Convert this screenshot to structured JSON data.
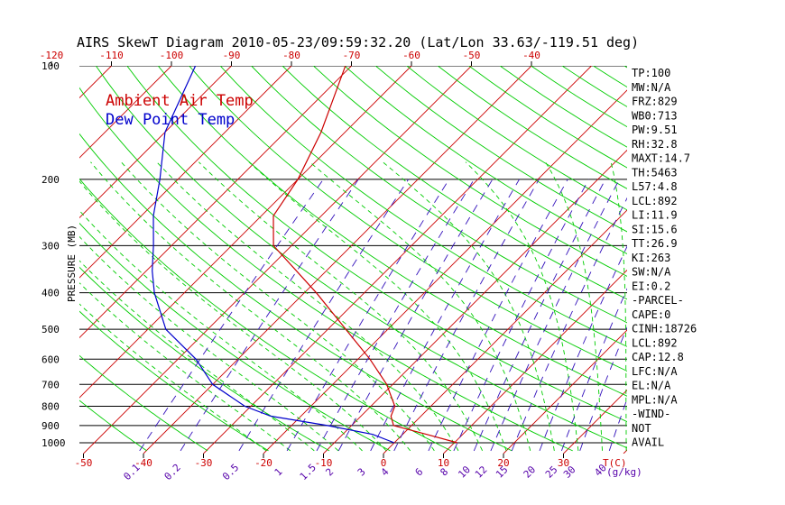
{
  "chart_data": {
    "type": "line",
    "title": "AIRS SkewT Diagram 2010-05-23/09:59:32.20 (Lat/Lon 33.63/-119.51 deg)",
    "ylabel": "PRESSURE (MB)",
    "y_scale": "log",
    "ylim": [
      1050,
      100
    ],
    "pressure_ticks": [
      1000,
      900,
      800,
      700,
      600,
      500,
      400,
      300,
      200,
      100
    ],
    "pressure_labels": [
      "1000",
      "900",
      "800",
      "700",
      "600",
      "500",
      "400",
      "300",
      "200",
      "100"
    ],
    "bottom_temp_ticks": [
      -50,
      -40,
      -30,
      -20,
      -10,
      0,
      10,
      20,
      30
    ],
    "bottom_temp_labels": [
      "-50",
      "-40",
      "-30",
      "-20",
      "-10",
      "0",
      "10",
      "20",
      "30"
    ],
    "temp_axis_label": "T(C)",
    "top_temp_ticks": [
      -120,
      -110,
      -100,
      -90,
      -80,
      -70,
      -60,
      -50,
      -40
    ],
    "top_temp_labels": [
      "-120",
      "-110",
      "-100",
      "-90",
      "-80",
      "-70",
      "-60",
      "-50",
      "-40"
    ],
    "mixing_ratio_labels": [
      "0.1",
      "0.2",
      "0.5",
      "1",
      "1.5",
      "2",
      "3",
      "4",
      "6",
      "8",
      "10",
      "12",
      "15",
      "20",
      "25",
      "30",
      "40"
    ],
    "mixing_ratio_values": [
      0.1,
      0.2,
      0.5,
      1,
      1.5,
      2,
      3,
      4,
      6,
      8,
      10,
      12,
      15,
      20,
      25,
      30,
      40
    ],
    "mixing_ratio_unit": "(g/kg)",
    "legend": [
      {
        "label": "Ambient Air Temp",
        "color": "#cc0000"
      },
      {
        "label": "Dew Point Temp",
        "color": "#0000cc"
      }
    ],
    "series": [
      {
        "name": "Ambient Air Temp",
        "color": "#cc0000",
        "points": [
          [
            1000,
            10.5
          ],
          [
            950,
            4
          ],
          [
            900,
            -3
          ],
          [
            850,
            -5
          ],
          [
            800,
            -6
          ],
          [
            700,
            -11
          ],
          [
            600,
            -18
          ],
          [
            500,
            -27
          ],
          [
            400,
            -38
          ],
          [
            300,
            -53
          ],
          [
            250,
            -58
          ],
          [
            200,
            -60
          ],
          [
            150,
            -64
          ],
          [
            100,
            -71
          ]
        ]
      },
      {
        "name": "Dew Point Temp",
        "color": "#0000cc",
        "points": [
          [
            1000,
            0
          ],
          [
            950,
            -5
          ],
          [
            900,
            -14
          ],
          [
            850,
            -25
          ],
          [
            800,
            -31
          ],
          [
            700,
            -40
          ],
          [
            600,
            -47
          ],
          [
            500,
            -57
          ],
          [
            400,
            -65
          ],
          [
            350,
            -69
          ],
          [
            300,
            -73
          ],
          [
            250,
            -78
          ],
          [
            200,
            -83
          ],
          [
            150,
            -90
          ],
          [
            100,
            -96
          ]
        ]
      }
    ]
  },
  "indices": [
    "TP:100",
    "MW:N/A",
    "FRZ:829",
    "WB0:713",
    "PW:9.51",
    "RH:32.8",
    "MAXT:14.7",
    "TH:5463",
    "L57:4.8",
    "LCL:892",
    "LI:11.9",
    "SI:15.6",
    "TT:26.9",
    "KI:263",
    "SW:N/A",
    "EI:0.2",
    "-PARCEL-",
    "CAPE:0",
    "CINH:18726",
    "LCL:892",
    "CAP:12.8",
    "LFC:N/A",
    "EL:N/A",
    "MPL:N/A",
    "-WIND-",
    "NOT",
    "AVAIL"
  ],
  "colors": {
    "isotherm": "#cc0000",
    "dry_adiabat": "#00cc00",
    "moist_adiabat": "#00cc00",
    "mixing_ratio": "#3311bb",
    "temp_tick_text": "#cc0000",
    "mixing_ratio_text": "#5500aa"
  }
}
